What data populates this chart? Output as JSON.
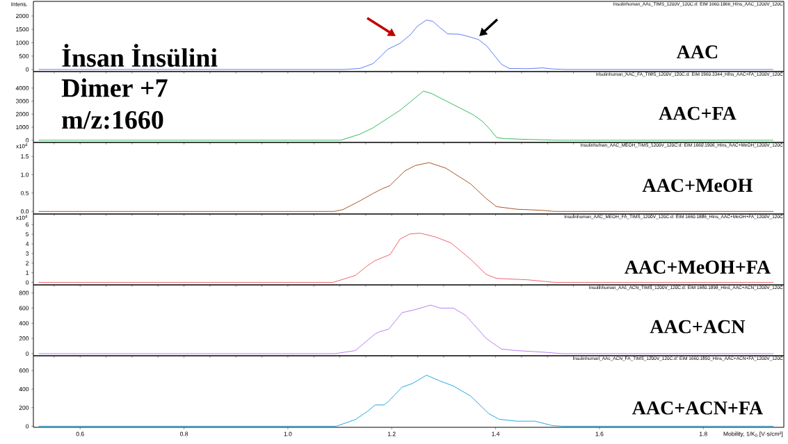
{
  "chart_data": [
    {
      "type": "line",
      "title": "Insulinhuman_AAc_TIMS_1200V_120C.d: EIM 1660.1866_HIns_AAC_1200V_120C",
      "ylabel": "Intens.",
      "annotations": [
        "AAC",
        "İnsan İnsülini",
        "Dimer +7",
        "m/z:1660"
      ],
      "xlim": [
        0.51,
        1.955
      ],
      "ylim": [
        -78,
        2545
      ],
      "yticks": [
        0,
        500,
        1000,
        1500,
        2000
      ],
      "tick_labels": "y",
      "series": [
        {
          "color": "#4a6cf0",
          "x": [
            0.52,
            1.109,
            1.139,
            1.164,
            1.182,
            1.192,
            1.216,
            1.236,
            1.249,
            1.267,
            1.279,
            1.293,
            1.308,
            1.33,
            1.35,
            1.367,
            1.383,
            1.397,
            1.411,
            1.426,
            1.463,
            1.49,
            1.51,
            1.534,
            1.935
          ],
          "values": [
            0,
            0,
            40,
            220,
            550,
            750,
            980,
            1300,
            1610,
            1850,
            1800,
            1560,
            1330,
            1320,
            1220,
            1120,
            880,
            540,
            200,
            40,
            30,
            60,
            20,
            0,
            0
          ]
        }
      ]
    },
    {
      "type": "line",
      "title": "Insulinhuman_AAC_FA_TIMS_1200V_120C.d: EIM 1660.3344_HIns_AAC+FA_1200V_120C",
      "annotations": [
        "AAC+FA"
      ],
      "xlim": [
        0.51,
        1.955
      ],
      "ylim": [
        -170,
        5270
      ],
      "yticks": [
        0,
        1000,
        2000,
        3000,
        4000
      ],
      "tick_labels": "y",
      "series": [
        {
          "color": "#1db34a",
          "x": [
            0.52,
            1.102,
            1.139,
            1.164,
            1.196,
            1.216,
            1.236,
            1.261,
            1.276,
            1.303,
            1.33,
            1.358,
            1.376,
            1.39,
            1.402,
            1.417,
            1.463,
            1.51,
            1.524,
            1.935
          ],
          "values": [
            0,
            0,
            470,
            950,
            1780,
            2300,
            2950,
            3770,
            3600,
            3050,
            2500,
            1930,
            1400,
            800,
            210,
            120,
            60,
            10,
            0,
            0
          ]
        }
      ]
    },
    {
      "type": "line",
      "title": "Insulinhuman_AAC_MEOH_TIMS_1200V_120C.d: EIM 1660.1906_HIns_AAC+MeOH_1200V_120C",
      "ylabel": "x10$^{4}$",
      "annotations": [
        "AAC+MeOH"
      ],
      "xlim": [
        0.51,
        1.955
      ],
      "ylim": [
        -0.07,
        1.88
      ],
      "yticks": [
        {
          "value": 0,
          "label": "0.0"
        },
        {
          "value": 0.5,
          "label": "0.5"
        },
        {
          "value": 1.0,
          "label": "1.0"
        },
        {
          "value": 1.5,
          "label": "1.5"
        }
      ],
      "tick_labels": "y",
      "series": [
        {
          "color": "#a0410d",
          "x": [
            0.52,
            1.089,
            1.106,
            1.139,
            1.164,
            1.182,
            1.196,
            1.225,
            1.245,
            1.272,
            1.304,
            1.352,
            1.382,
            1.402,
            1.441,
            1.49,
            1.514,
            1.935
          ],
          "values": [
            0,
            0,
            0.05,
            0.29,
            0.49,
            0.62,
            0.7,
            1.1,
            1.25,
            1.33,
            1.18,
            0.75,
            0.35,
            0.13,
            0.06,
            0.03,
            0,
            0
          ]
        }
      ]
    },
    {
      "type": "line",
      "title": "Insulinhuman_AAC_MEOH_FA_TIMS_1200V_120C.d: EIM 1660.1886_HIns_AAC+MeOH+FA_1200V_120C",
      "ylabel": "x10$^{4}$",
      "annotations": [
        "AAC+MeOH+FA"
      ],
      "xlim": [
        0.51,
        1.955
      ],
      "ylim": [
        -0.26,
        7.1
      ],
      "yticks": [
        0,
        1,
        2,
        3,
        4,
        5,
        6
      ],
      "tick_labels": "y",
      "series": [
        {
          "color": "#f0505a",
          "x": [
            0.52,
            1.087,
            1.13,
            1.154,
            1.168,
            1.197,
            1.216,
            1.235,
            1.255,
            1.284,
            1.314,
            1.352,
            1.382,
            1.402,
            1.461,
            1.514,
            1.935
          ],
          "values": [
            0,
            0,
            0.72,
            1.76,
            2.26,
            2.9,
            4.5,
            5.03,
            5.11,
            4.72,
            4.1,
            2.4,
            0.82,
            0.41,
            0.27,
            0,
            0
          ]
        }
      ]
    },
    {
      "type": "line",
      "title": "Insulinhuman_AAc_ACN_TIMS_1200V_120C.d: EIM 1660.1898_HIns_AAC+ACN_1200V_120C",
      "annotations": [
        "AAC+ACN"
      ],
      "xlim": [
        0.51,
        1.955
      ],
      "ylim": [
        -28,
        906
      ],
      "yticks": [
        0,
        200,
        400,
        600,
        800
      ],
      "tick_labels": "y",
      "series": [
        {
          "color": "#b070f0",
          "x": [
            0.52,
            1.091,
            1.13,
            1.168,
            1.177,
            1.194,
            1.22,
            1.245,
            1.275,
            1.293,
            1.319,
            1.343,
            1.382,
            1.411,
            1.441,
            1.49,
            1.529,
            1.935
          ],
          "values": [
            0,
            0,
            40,
            260,
            290,
            320,
            540,
            580,
            640,
            600,
            600,
            500,
            200,
            60,
            40,
            20,
            0,
            0
          ]
        }
      ]
    },
    {
      "type": "line",
      "title": "Insulinhuman_AAc_ACN_FA_TIMS_1200V_120C.d: EIM 1660.1850_HIns_AAC+ACN+FA_1200V_120C",
      "xlabel": "Mobility, 1/K$_{0}$ [V·s/cm²]",
      "annotations": [
        "AAC+ACN+FA"
      ],
      "xlim": [
        0.51,
        1.955
      ],
      "ylim": [
        -12,
        760
      ],
      "yticks": [
        0,
        200,
        400,
        600
      ],
      "xticks": [
        {
          "value": 0.6,
          "label": "0.6"
        },
        {
          "value": 0.8,
          "label": "0.8"
        },
        {
          "value": 1.0,
          "label": "1.0"
        },
        {
          "value": 1.2,
          "label": "1.2"
        },
        {
          "value": 1.4,
          "label": "1.4"
        },
        {
          "value": 1.6,
          "label": "1.6"
        },
        {
          "value": 1.8,
          "label": "1.8"
        }
      ],
      "series": [
        {
          "color": "#0a9ee0",
          "x": [
            0.52,
            1.093,
            1.13,
            1.154,
            1.168,
            1.185,
            1.194,
            1.22,
            1.24,
            1.267,
            1.293,
            1.319,
            1.352,
            1.387,
            1.407,
            1.441,
            1.476,
            1.509,
            1.529,
            1.935
          ],
          "values": [
            0,
            0,
            71,
            163,
            229,
            229,
            269,
            421,
            461,
            550,
            488,
            433,
            325,
            135,
            75,
            54,
            54,
            7,
            0,
            0
          ]
        }
      ]
    }
  ]
}
